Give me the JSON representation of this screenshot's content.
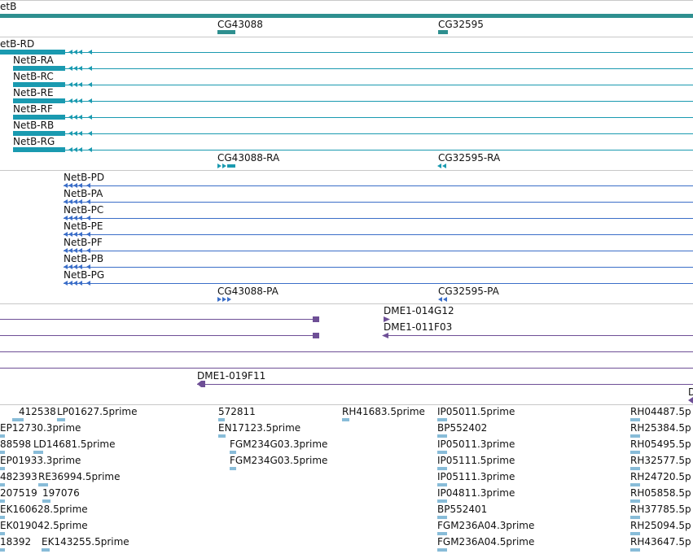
{
  "colors": {
    "gene": "#2e8f8f",
    "transcript": "#1a9ab0",
    "protein": "#3b6ec8",
    "clone": "#6e4f96",
    "est": "#88bcd8",
    "separator": "#c8c8c8",
    "text": "#111111"
  },
  "tracks": {
    "genes": {
      "items": [
        {
          "label": "etB"
        },
        {
          "label": "CG43088"
        },
        {
          "label": "CG32595"
        }
      ]
    },
    "transcripts": {
      "items": [
        {
          "label": "etB-RD"
        },
        {
          "label": "NetB-RA"
        },
        {
          "label": "NetB-RC"
        },
        {
          "label": "NetB-RE"
        },
        {
          "label": "NetB-RF"
        },
        {
          "label": "NetB-RB"
        },
        {
          "label": "NetB-RG"
        },
        {
          "label": "CG43088-RA"
        },
        {
          "label": "CG32595-RA"
        }
      ]
    },
    "proteins": {
      "items": [
        {
          "label": "NetB-PD"
        },
        {
          "label": "NetB-PA"
        },
        {
          "label": "NetB-PC"
        },
        {
          "label": "NetB-PE"
        },
        {
          "label": "NetB-PF"
        },
        {
          "label": "NetB-PB"
        },
        {
          "label": "NetB-PG"
        },
        {
          "label": "CG43088-PA"
        },
        {
          "label": "CG32595-PA"
        }
      ]
    },
    "clones": {
      "items": [
        {
          "label": "DME1-014G12"
        },
        {
          "label": "DME1-011F03"
        },
        {
          "label": "DME1-019F11"
        },
        {
          "label": "D"
        }
      ]
    },
    "ests": {
      "items": [
        {
          "label": "412538"
        },
        {
          "label": "LP01627.5prime"
        },
        {
          "label": "572811"
        },
        {
          "label": "RH41683.5prime"
        },
        {
          "label": "IP05011.5prime"
        },
        {
          "label": "RH04487.5p"
        },
        {
          "label": "EP12730.3prime"
        },
        {
          "label": "EN17123.5prime"
        },
        {
          "label": "BP552402"
        },
        {
          "label": "RH25384.5p"
        },
        {
          "label": "88598"
        },
        {
          "label": "LD14681.5prime"
        },
        {
          "label": "FGM234G03.3prime"
        },
        {
          "label": "IP05011.3prime"
        },
        {
          "label": "RH05495.5p"
        },
        {
          "label": "EP01933.3prime"
        },
        {
          "label": "FGM234G03.5prime"
        },
        {
          "label": "IP05111.5prime"
        },
        {
          "label": "RH32577.5p"
        },
        {
          "label": "482393"
        },
        {
          "label": "RE36994.5prime"
        },
        {
          "label": "IP05111.3prime"
        },
        {
          "label": "RH24720.5p"
        },
        {
          "label": "207519"
        },
        {
          "label": "197076"
        },
        {
          "label": "IP04811.3prime"
        },
        {
          "label": "RH05858.5p"
        },
        {
          "label": "EK160628.5prime"
        },
        {
          "label": "BP552401"
        },
        {
          "label": "RH37785.5p"
        },
        {
          "label": "EK019042.5prime"
        },
        {
          "label": "FGM236A04.3prime"
        },
        {
          "label": "RH25094.5p"
        },
        {
          "label": "18392"
        },
        {
          "label": "EK143255.5prime"
        },
        {
          "label": "FGM236A04.5prime"
        },
        {
          "label": "RH43647.5p"
        }
      ]
    }
  }
}
